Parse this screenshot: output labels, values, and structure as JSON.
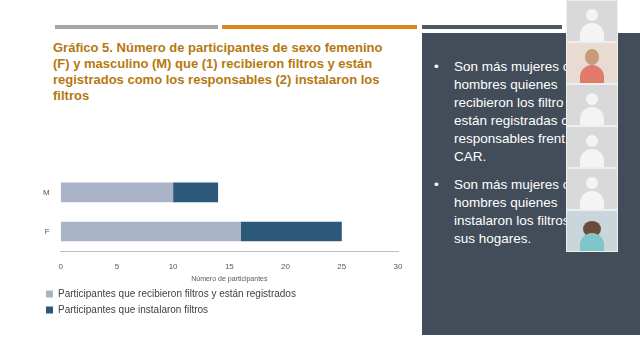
{
  "chart_data": {
    "type": "bar",
    "title": "Gráfico 5. Número de participantes de sexo femenino (F) y masculino (M) que (1) recibieron filtros y están registrados como los responsables (2) instalaron los filtros",
    "orientation": "horizontal",
    "stacked": true,
    "grid": false,
    "legend": "bottom",
    "categories": [
      "M",
      "F"
    ],
    "series": [
      {
        "name": "Participantes que recibieron filtros y están registrados",
        "color": "#a9b4c8",
        "values": [
          10,
          16
        ]
      },
      {
        "name": "Participantes que instalaron filtros",
        "color": "#2c5879",
        "values": [
          4,
          9
        ]
      }
    ],
    "x_label": "Número de participantes",
    "xlim": [
      0,
      30
    ],
    "xticks": [
      0,
      5,
      10,
      15,
      20,
      25,
      30
    ]
  },
  "side_panel": {
    "bullets": [
      [
        "Son más mujeres c",
        "hombres quienes",
        "recibieron los filtro",
        "están registradas c",
        "responsables frent",
        "CAR."
      ],
      [
        "Son más mujeres c",
        "hombres quienes",
        "instalaron los filtros",
        "sus hogares."
      ]
    ]
  }
}
